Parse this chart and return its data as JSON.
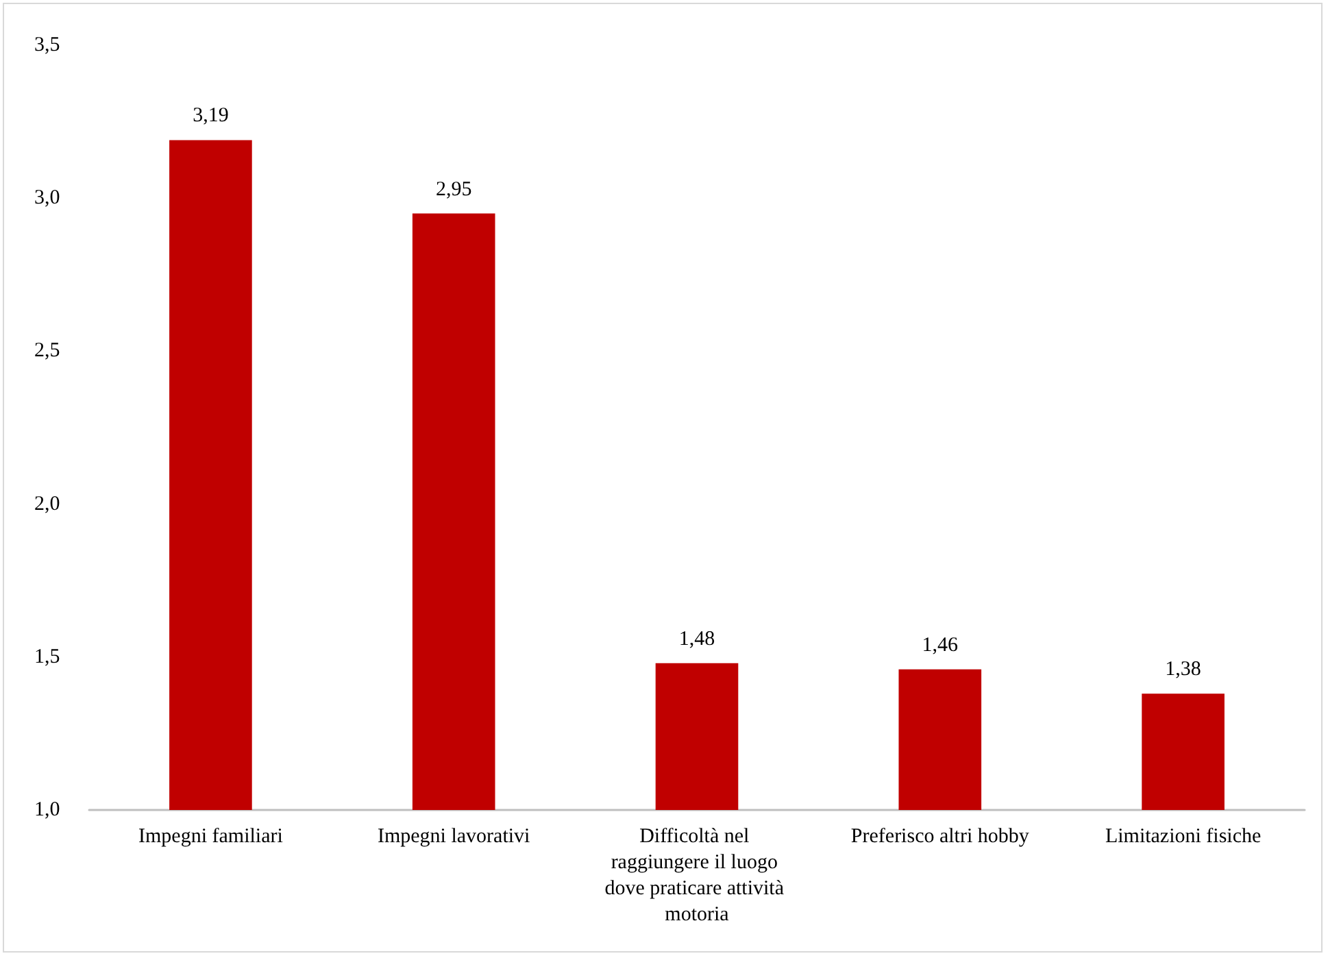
{
  "chart_data": {
    "type": "bar",
    "categories": [
      "Impegni familiari",
      "Impegni lavorativi",
      "Difficoltà nel raggiungere il luogo dove praticare attività motoria",
      "Preferisco altri hobby",
      "Limitazioni fisiche"
    ],
    "values": [
      3.19,
      2.95,
      1.48,
      1.46,
      1.38
    ],
    "value_labels": [
      "3,19",
      "2,95",
      "1,48",
      "1,46",
      "1,38"
    ],
    "color": "#c00000",
    "ylim": [
      1.0,
      3.5
    ],
    "yticks": [
      {
        "value": 1.0,
        "label": "1,0"
      },
      {
        "value": 1.5,
        "label": "1,5"
      },
      {
        "value": 2.0,
        "label": "2,0"
      },
      {
        "value": 2.5,
        "label": "2,5"
      },
      {
        "value": 3.0,
        "label": "3,0"
      },
      {
        "value": 3.5,
        "label": "3,5"
      }
    ],
    "grid": false
  }
}
